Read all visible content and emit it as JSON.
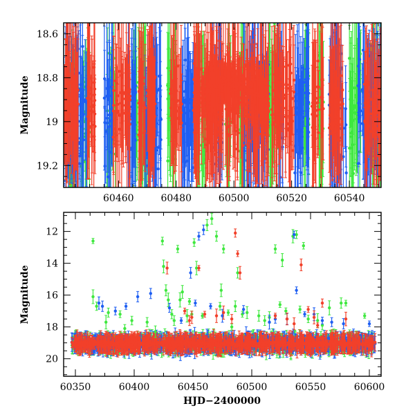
{
  "chart_data": [
    {
      "type": "scatter",
      "title": "",
      "xlabel": "",
      "ylabel": "Magnitude",
      "xlim": [
        60441,
        60551
      ],
      "ylim": [
        19.3,
        18.55
      ],
      "inverted_y": true,
      "error_bars": true,
      "x_ticks": [
        60460,
        60480,
        60500,
        60520,
        60540
      ],
      "y_ticks": [
        18.6,
        18.8,
        19,
        19.2
      ],
      "y_tick_labels": [
        "18.6",
        "18.8",
        "19",
        "19.2"
      ],
      "series_colors": [
        "#1f5ff2",
        "#3fe83f",
        "#f2402a"
      ],
      "series": [
        {
          "color": "#1f5ff2",
          "note_x_dense": [
            [
              60441,
              60449
            ],
            [
              60455,
              60458
            ],
            [
              60463,
              60466
            ],
            [
              60469,
              60475
            ],
            [
              60482,
              60486
            ],
            [
              60492,
              60496
            ],
            [
              60503,
              60512
            ],
            [
              60515,
              60517
            ],
            [
              60521,
              60526
            ],
            [
              60533,
              60539
            ],
            [
              60543,
              60551
            ]
          ],
          "y_center": 18.95,
          "y_spread": 0.35
        },
        {
          "color": "#3fe83f",
          "note_x_dense": [
            [
              60442,
              60446
            ],
            [
              60447,
              60450
            ],
            [
              60456,
              60459
            ],
            [
              60465,
              60470
            ],
            [
              60477,
              60480
            ],
            [
              60487,
              60490
            ],
            [
              60497,
              60499
            ],
            [
              60502,
              60504
            ],
            [
              60512,
              60515
            ],
            [
              60524,
              60526
            ],
            [
              60529,
              60531
            ],
            [
              60540,
              60544
            ],
            [
              60547,
              60551
            ]
          ],
          "y_center": 18.95,
          "y_spread": 0.35
        },
        {
          "color": "#f2402a",
          "note_x_dense": [
            [
              60441,
              60446
            ],
            [
              60449,
              60452
            ],
            [
              60458,
              60464
            ],
            [
              60467,
              60473
            ],
            [
              60478,
              60482
            ],
            [
              60486,
              60512
            ],
            [
              60513,
              60521
            ],
            [
              60527,
              60531
            ],
            [
              60533,
              60538
            ],
            [
              60545,
              60551
            ]
          ],
          "y_center": 18.92,
          "y_spread": 0.25
        }
      ]
    },
    {
      "type": "scatter",
      "title": "",
      "xlabel": "HJD−2400000",
      "ylabel": "Magnitude",
      "xlim": [
        60340,
        60610
      ],
      "ylim": [
        21.1,
        10.8
      ],
      "inverted_y": true,
      "error_bars": true,
      "x_ticks": [
        60350,
        60400,
        60450,
        60500,
        60550,
        60600
      ],
      "y_ticks": [
        12,
        14,
        16,
        18,
        20
      ],
      "series_colors": [
        "#1f5ff2",
        "#3fe83f",
        "#f2402a"
      ],
      "baseline": {
        "x_range": [
          60347,
          60605
        ],
        "y_center": 19.05,
        "y_spread": 0.45
      },
      "outliers": {
        "green": [
          [
            60365,
            12.6
          ],
          [
            60365,
            16.1
          ],
          [
            60368,
            16.7
          ],
          [
            60376,
            17.7
          ],
          [
            60378,
            17.1
          ],
          [
            60388,
            17.2
          ],
          [
            60392,
            18.1
          ],
          [
            60398,
            17.6
          ],
          [
            60411,
            17.7
          ],
          [
            60418,
            18.3
          ],
          [
            60424,
            12.6
          ],
          [
            60425,
            14.2
          ],
          [
            60427,
            15.7
          ],
          [
            60429,
            16.3
          ],
          [
            60432,
            17.2
          ],
          [
            60434,
            17.6
          ],
          [
            60437,
            13.1
          ],
          [
            60439,
            16.3
          ],
          [
            60441,
            15.8
          ],
          [
            60445,
            17.3
          ],
          [
            60447,
            16.4
          ],
          [
            60449,
            17.2
          ],
          [
            60451,
            12.7
          ],
          [
            60453,
            14.3
          ],
          [
            60458,
            17.3
          ],
          [
            60462,
            11.6
          ],
          [
            60466,
            11.2
          ],
          [
            60470,
            12.3
          ],
          [
            60473,
            16.7
          ],
          [
            60474,
            15.7
          ],
          [
            60476,
            13.1
          ],
          [
            60480,
            17.1
          ],
          [
            60483,
            18.0
          ],
          [
            60486,
            16.7
          ],
          [
            60488,
            14.6
          ],
          [
            60492,
            17.2
          ],
          [
            60496,
            17.1
          ],
          [
            60506,
            17.3
          ],
          [
            60511,
            17.6
          ],
          [
            60515,
            17.4
          ],
          [
            60520,
            13.1
          ],
          [
            60524,
            16.6
          ],
          [
            60526,
            13.8
          ],
          [
            60529,
            17.0
          ],
          [
            60535,
            12.3
          ],
          [
            60538,
            12.2
          ],
          [
            60541,
            16.9
          ],
          [
            60544,
            12.9
          ],
          [
            60548,
            17.5
          ],
          [
            60556,
            17.6
          ],
          [
            60560,
            17.9
          ],
          [
            60566,
            16.8
          ],
          [
            60576,
            16.5
          ],
          [
            60580,
            16.5
          ],
          [
            60596,
            17.3
          ]
        ],
        "blue": [
          [
            60370,
            16.5
          ],
          [
            60373,
            16.7
          ],
          [
            60384,
            17.0
          ],
          [
            60393,
            16.7
          ],
          [
            60403,
            16.1
          ],
          [
            60414,
            15.9
          ],
          [
            60430,
            16.8
          ],
          [
            60440,
            17.6
          ],
          [
            60448,
            14.6
          ],
          [
            60452,
            16.5
          ],
          [
            60455,
            12.3
          ],
          [
            60459,
            11.9
          ],
          [
            60465,
            16.7
          ],
          [
            60475,
            17.3
          ],
          [
            60493,
            16.9
          ],
          [
            60515,
            17.7
          ],
          [
            60520,
            17.5
          ],
          [
            60530,
            17.5
          ],
          [
            60536,
            12.2
          ],
          [
            60538,
            15.7
          ],
          [
            60545,
            17.2
          ],
          [
            60553,
            17.2
          ],
          [
            60560,
            17.6
          ],
          [
            60568,
            17.7
          ],
          [
            60578,
            17.8
          ],
          [
            60600,
            17.8
          ]
        ],
        "red": [
          [
            60428,
            14.3
          ],
          [
            60443,
            17.0
          ],
          [
            60447,
            17.6
          ],
          [
            60449,
            17.4
          ],
          [
            60455,
            14.3
          ],
          [
            60460,
            17.2
          ],
          [
            60470,
            17.3
          ],
          [
            60476,
            17.1
          ],
          [
            60483,
            17.5
          ],
          [
            60486,
            12.1
          ],
          [
            60488,
            13.4
          ],
          [
            60490,
            14.6
          ],
          [
            60520,
            17.3
          ],
          [
            60530,
            17.5
          ],
          [
            60536,
            17.8
          ],
          [
            60542,
            14.1
          ],
          [
            60548,
            16.9
          ],
          [
            60553,
            17.4
          ],
          [
            60556,
            17.9
          ],
          [
            60560,
            16.5
          ],
          [
            60580,
            17.5
          ]
        ]
      }
    }
  ]
}
